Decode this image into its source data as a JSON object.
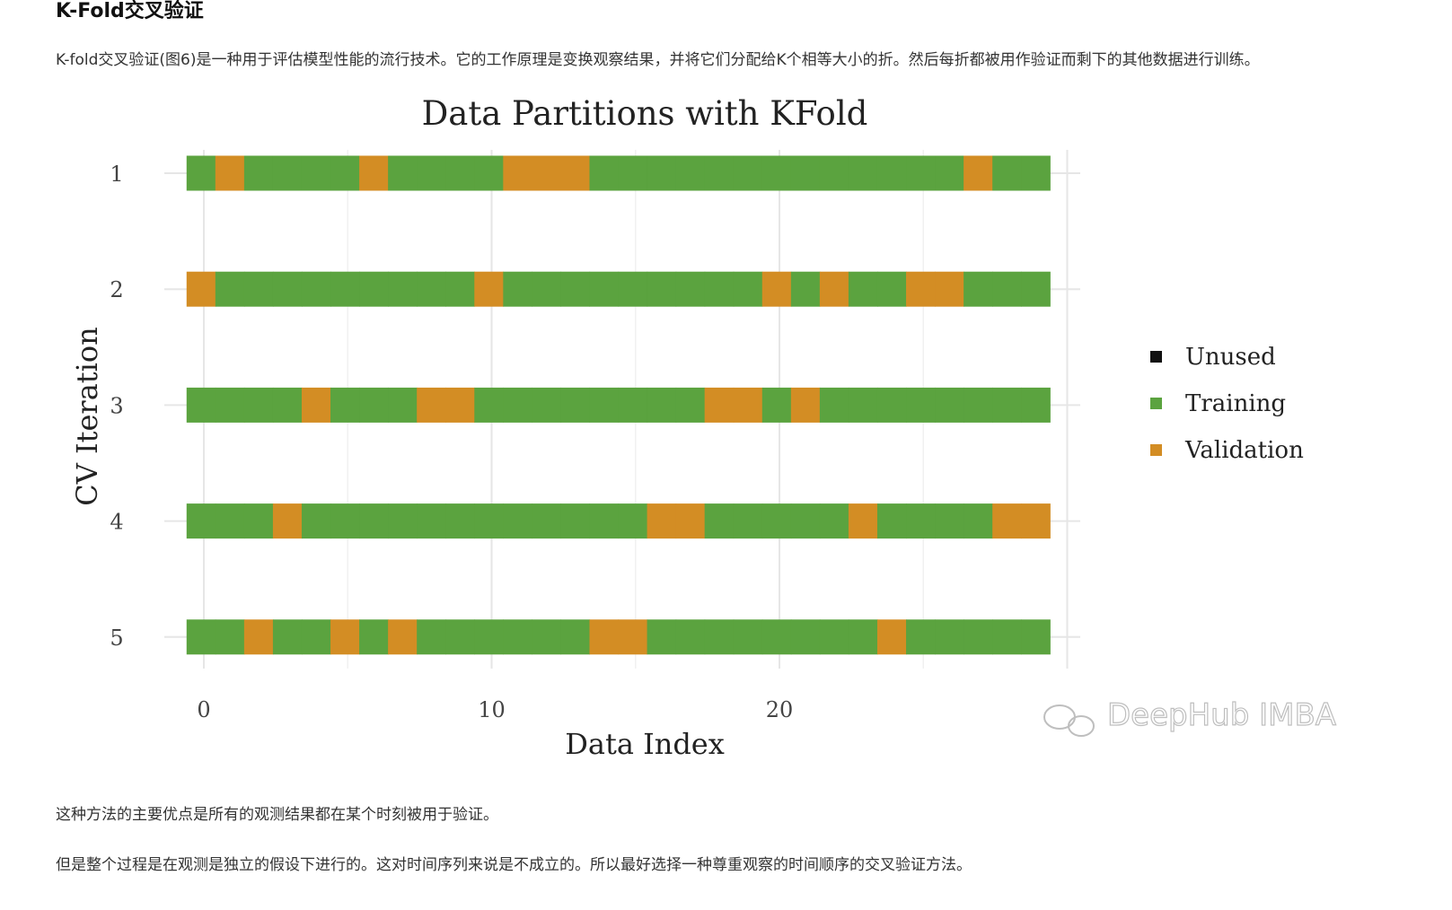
{
  "article": {
    "heading": "K-Fold交叉验证",
    "intro": "K-fold交叉验证(图6)是一种用于评估模型性能的流行技术。它的工作原理是变换观察结果，并将它们分配给K个相等大小的折。然后每折都被用作验证而剩下的其他数据进行训练。",
    "paragraph_1": "这种方法的主要优点是所有的观测结果都在某个时刻被用于验证。",
    "paragraph_2": "但是整个过程是在观测是独立的假设下进行的。这对时间序列来说是不成立的。所以最好选择一种尊重观察的时间顺序的交叉验证方法。"
  },
  "watermark": "DeepHub IMBA",
  "colors": {
    "Unused": "#111111",
    "Training": "#5ba33f",
    "Validation": "#d38d24"
  },
  "chart_data": {
    "type": "bar",
    "title": "Data Partitions with KFold",
    "xlabel": "Data Index",
    "ylabel": "CV Iteration",
    "xlim": [
      -0.6,
      30.5
    ],
    "x_ticks": [
      0,
      10,
      20
    ],
    "y_categories": [
      "1",
      "2",
      "3",
      "4",
      "5"
    ],
    "legend": {
      "position": "right",
      "entries": [
        "Unused",
        "Training",
        "Validation"
      ]
    },
    "grid": true,
    "n_samples": 30,
    "series": [
      {
        "iteration": "1",
        "validation_indices": [
          1,
          6,
          11,
          12,
          13,
          27
        ]
      },
      {
        "iteration": "2",
        "validation_indices": [
          0,
          10,
          20,
          22,
          25,
          26
        ]
      },
      {
        "iteration": "3",
        "validation_indices": [
          4,
          8,
          9,
          18,
          19,
          21
        ]
      },
      {
        "iteration": "4",
        "validation_indices": [
          3,
          16,
          17,
          23,
          28,
          29
        ]
      },
      {
        "iteration": "5",
        "validation_indices": [
          2,
          5,
          7,
          14,
          15,
          24
        ]
      }
    ]
  }
}
